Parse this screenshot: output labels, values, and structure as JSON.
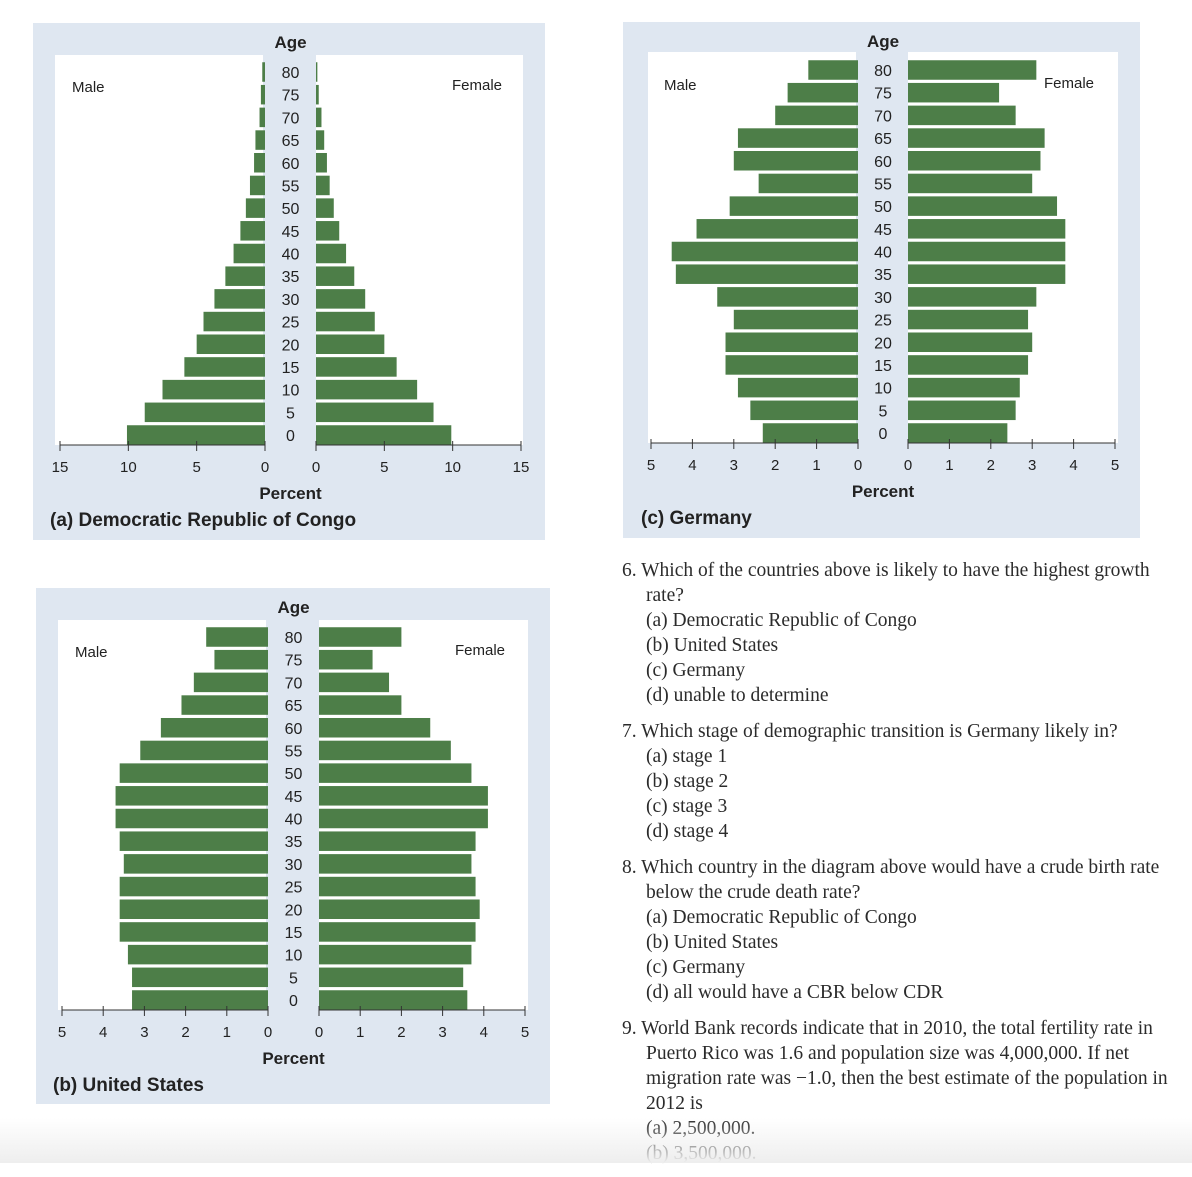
{
  "colors": {
    "bar": "#4d7e48",
    "panel": "#dfe7f1",
    "plot": "#ffffff"
  },
  "chart_data": [
    {
      "type": "bar",
      "orientation": "horizontal-pyramid",
      "title": "(a) Democratic Republic of Congo",
      "xlabel": "Percent",
      "ylabel": "Age",
      "categories": [
        "0",
        "5",
        "10",
        "15",
        "20",
        "25",
        "30",
        "35",
        "40",
        "45",
        "50",
        "55",
        "60",
        "65",
        "70",
        "75",
        "80"
      ],
      "series": [
        {
          "name": "Male",
          "values": [
            10.1,
            8.8,
            7.5,
            5.9,
            5.0,
            4.5,
            3.7,
            2.9,
            2.3,
            1.8,
            1.4,
            1.1,
            0.8,
            0.7,
            0.4,
            0.3,
            0.2
          ]
        },
        {
          "name": "Female",
          "values": [
            9.9,
            8.6,
            7.4,
            5.9,
            5.0,
            4.3,
            3.6,
            2.8,
            2.2,
            1.7,
            1.3,
            1.0,
            0.8,
            0.6,
            0.4,
            0.2,
            0.1
          ]
        }
      ],
      "xlim": [
        0,
        15
      ],
      "male_ticks": [
        "15",
        "10",
        "5",
        "0"
      ],
      "female_ticks": [
        "0",
        "5",
        "10",
        "15"
      ]
    },
    {
      "type": "bar",
      "orientation": "horizontal-pyramid",
      "title": "(b) United States",
      "xlabel": "Percent",
      "ylabel": "Age",
      "categories": [
        "0",
        "5",
        "10",
        "15",
        "20",
        "25",
        "30",
        "35",
        "40",
        "45",
        "50",
        "55",
        "60",
        "65",
        "70",
        "75",
        "80"
      ],
      "series": [
        {
          "name": "Male",
          "values": [
            3.3,
            3.3,
            3.4,
            3.6,
            3.6,
            3.6,
            3.5,
            3.6,
            3.7,
            3.7,
            3.6,
            3.1,
            2.6,
            2.1,
            1.8,
            1.3,
            1.5
          ]
        },
        {
          "name": "Female",
          "values": [
            3.6,
            3.5,
            3.7,
            3.8,
            3.9,
            3.8,
            3.7,
            3.8,
            4.1,
            4.1,
            3.7,
            3.2,
            2.7,
            2.0,
            1.7,
            1.3,
            2.0
          ]
        }
      ],
      "xlim": [
        0,
        5
      ],
      "male_ticks": [
        "5",
        "4",
        "3",
        "2",
        "1",
        "0"
      ],
      "female_ticks": [
        "0",
        "1",
        "2",
        "3",
        "4",
        "5"
      ]
    },
    {
      "type": "bar",
      "orientation": "horizontal-pyramid",
      "title": "(c) Germany",
      "xlabel": "Percent",
      "ylabel": "Age",
      "categories": [
        "0",
        "5",
        "10",
        "15",
        "20",
        "25",
        "30",
        "35",
        "40",
        "45",
        "50",
        "55",
        "60",
        "65",
        "70",
        "75",
        "80"
      ],
      "series": [
        {
          "name": "Male",
          "values": [
            2.3,
            2.6,
            2.9,
            3.2,
            3.2,
            3.0,
            3.4,
            4.4,
            4.5,
            3.9,
            3.1,
            2.4,
            3.0,
            2.9,
            2.0,
            1.7,
            1.2
          ]
        },
        {
          "name": "Female",
          "values": [
            2.4,
            2.6,
            2.7,
            2.9,
            3.0,
            2.9,
            3.1,
            3.8,
            3.8,
            3.8,
            3.6,
            3.0,
            3.2,
            3.3,
            2.6,
            2.2,
            3.1
          ]
        }
      ],
      "xlim": [
        0,
        5
      ],
      "male_ticks": [
        "5",
        "4",
        "3",
        "2",
        "1",
        "0"
      ],
      "female_ticks": [
        "0",
        "1",
        "2",
        "3",
        "4",
        "5"
      ]
    }
  ],
  "questions": [
    {
      "text": "6. Which of the countries above is likely to have the highest growth rate?",
      "options": [
        "(a)  Democratic Republic of Congo",
        "(b)  United States",
        "(c)  Germany",
        "(d)  unable to determine"
      ]
    },
    {
      "text": "7. Which stage of demographic transition is Germany likely in?",
      "options": [
        "(a)  stage 1",
        "(b)  stage 2",
        "(c)  stage 3",
        "(d)  stage 4"
      ]
    },
    {
      "text": "8. Which country in the diagram above would have a crude birth rate below the crude death rate?",
      "options": [
        "(a)  Democratic Republic of Congo",
        "(b)  United States",
        "(c)  Germany",
        "(d)  all would have a CBR below CDR"
      ]
    },
    {
      "text": "9. World Bank records indicate that in 2010, the total fertility rate in Puerto Rico was 1.6 and population size was 4,000,000. If net migration rate was −1.0, then the best estimate of the population in 2012 is",
      "options": [
        "(a)  2,500,000.",
        "(b)  3,500,000."
      ]
    }
  ]
}
